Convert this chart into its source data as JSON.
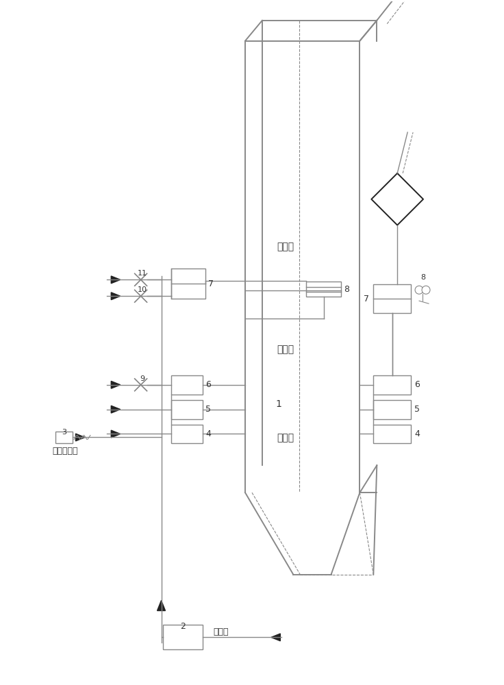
{
  "bg_color": "#ffffff",
  "lc": "#888888",
  "dc": "#222222",
  "tc": "#333333",
  "figsize": [
    7.36,
    10.0
  ],
  "dpi": 100,
  "zone_burn": "燃尽区",
  "zone_reduce": "还原区",
  "zone_main": "主燃区",
  "coal_label": "煤粉气流来",
  "hot_wind": "热风来",
  "labels": [
    "1",
    "2",
    "3",
    "4",
    "5",
    "6",
    "7",
    "8",
    "9",
    "10",
    "11"
  ]
}
